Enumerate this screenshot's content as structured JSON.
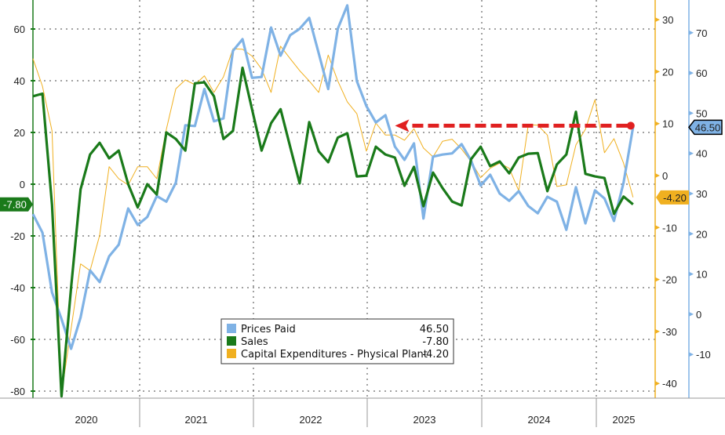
{
  "chart_data": {
    "type": "line",
    "title": "",
    "x_start": "2020-01",
    "x_end": "2025-04",
    "frequency": "monthly",
    "year_labels": [
      "2020",
      "2021",
      "2022",
      "2023",
      "2024",
      "2025"
    ],
    "axes": {
      "left": {
        "series": "Sales",
        "ylim": [
          -82,
          70
        ],
        "ticks": [
          60,
          40,
          20,
          0,
          -20,
          -40,
          -60,
          -80
        ],
        "color": "#1a7a1a"
      },
      "right_inner": {
        "series": "Capital Expenditures - Physical Plant",
        "ylim": [
          -42,
          34
        ],
        "ticks": [
          30,
          20,
          10,
          0,
          -10,
          -20,
          -30,
          -40
        ],
        "color": "#f0b020"
      },
      "right_outer": {
        "series": "Prices Paid",
        "ylim": [
          -12,
          78
        ],
        "ticks": [
          70,
          60,
          50,
          40,
          30,
          20,
          10,
          0,
          -10
        ],
        "color": "#7fb2e5"
      }
    },
    "grid": true,
    "legend_position": "bottom-center",
    "series": [
      {
        "name": "Prices Paid",
        "axis": "right_outer",
        "color": "#7fb2e5",
        "last": "46.50",
        "values": [
          24.9,
          20.3,
          5.4,
          -1.2,
          -8.6,
          -0.8,
          10.9,
          8,
          14.4,
          17.3,
          26.3,
          22.2,
          24.2,
          29.4,
          28,
          32.7,
          47,
          46.8,
          56,
          48,
          48.7,
          65.5,
          68.4,
          58.8,
          59,
          71.3,
          64.3,
          69.4,
          71,
          73.7,
          64.9,
          56,
          71,
          76.8,
          58,
          51.8,
          47.7,
          49.5,
          41.7,
          38.4,
          42.5,
          23.8,
          39.2,
          39.7,
          40,
          42.3,
          38.2,
          32,
          34.7,
          30,
          28.2,
          30.6,
          26.9,
          25.1,
          29.2,
          28,
          21,
          31.6,
          22.6,
          30.8,
          28.8,
          23.2,
          32.7,
          46.5
        ]
      },
      {
        "name": "Sales",
        "axis": "left",
        "color": "#1a7a1a",
        "last": "-7.80",
        "values": [
          34,
          35,
          -8,
          -82,
          -40,
          -2,
          11.5,
          16,
          10,
          13,
          0,
          -9,
          0,
          -4,
          20,
          17.5,
          13,
          39,
          39.4,
          34,
          17.5,
          20.6,
          45,
          29,
          13,
          23.6,
          29,
          14.5,
          0.3,
          24,
          12.7,
          8.5,
          18,
          19.7,
          3,
          3.3,
          14.5,
          11.5,
          10.3,
          -0.6,
          6.7,
          -8.5,
          4.5,
          -1.5,
          -6.7,
          -8.2,
          9.7,
          14.5,
          7,
          8.8,
          4.2,
          10.3,
          11.8,
          12,
          -2.7,
          7.6,
          11.5,
          28,
          4,
          3,
          2.4,
          -11.5,
          -4.8,
          -7.8
        ]
      },
      {
        "name": "Capital Expenditures - Physical Plant",
        "axis": "right_inner",
        "color": "#f0b020",
        "last": "-4.20",
        "values": [
          22.5,
          17.2,
          8.6,
          -42,
          -29.5,
          -17,
          -18.3,
          -11.5,
          1.7,
          -0.6,
          -1.8,
          1.7,
          1.7,
          -0.6,
          8.9,
          16.7,
          18.4,
          17.5,
          19.2,
          16,
          19,
          24.4,
          24.3,
          23,
          20.5,
          16,
          24.9,
          22.5,
          20.2,
          18.2,
          16,
          23.2,
          18.2,
          14.2,
          11.9,
          4.7,
          10.1,
          7.8,
          7.8,
          6.8,
          9,
          5.3,
          3.6,
          6.6,
          7,
          5.1,
          2.7,
          -0.4,
          1.4,
          2.4,
          1.4,
          -2.9,
          9.8,
          9.7,
          7.8,
          -2.1,
          -1.8,
          5.9,
          8.9,
          14.6,
          4.4,
          7.1,
          2.4,
          -4.2
        ]
      }
    ],
    "annotation": {
      "type": "dashed-arrow",
      "color": "#e02020",
      "from_index": 63,
      "to_index": 39,
      "level_prices_paid": 46.5
    }
  }
}
